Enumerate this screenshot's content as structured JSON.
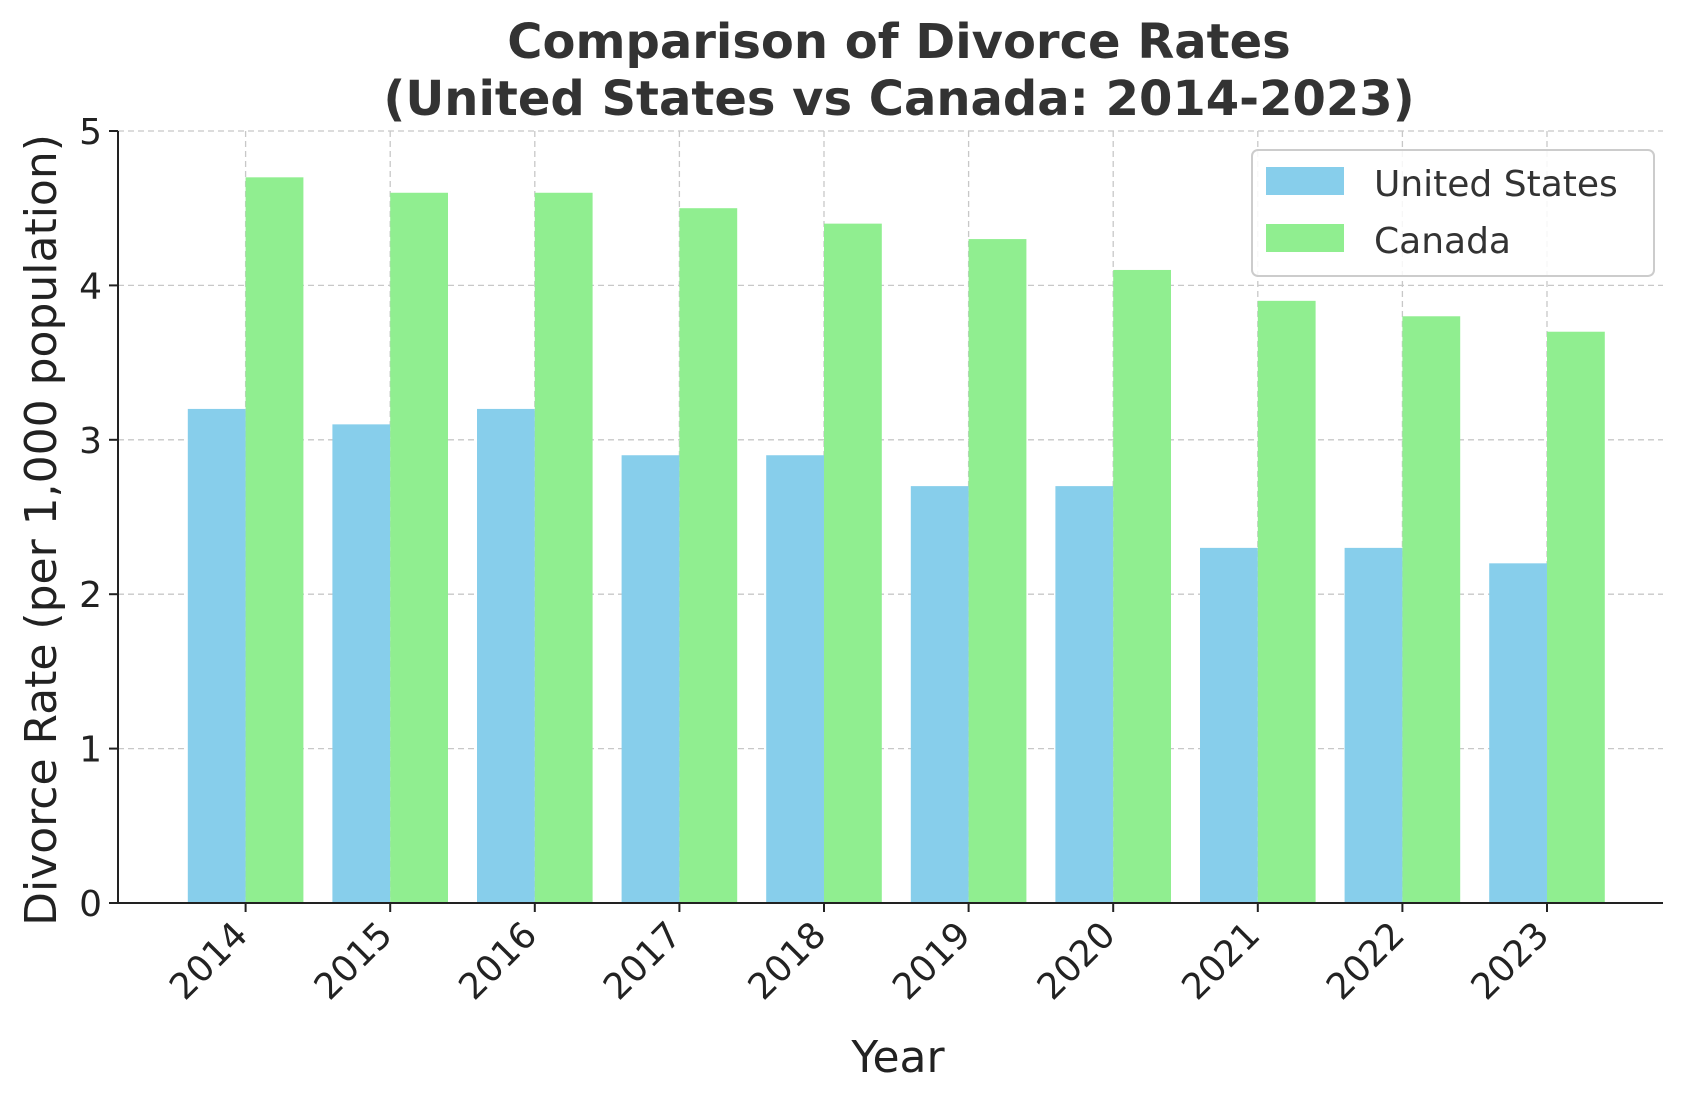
{
  "chart_data": {
    "type": "bar",
    "title_line1": "Comparison of Divorce Rates",
    "title_line2": "(United States vs Canada: 2014-2023)",
    "xlabel": "Year",
    "ylabel": "Divorce Rate (per 1,000 population)",
    "categories": [
      "2014",
      "2015",
      "2016",
      "2017",
      "2018",
      "2019",
      "2020",
      "2021",
      "2022",
      "2023"
    ],
    "series": [
      {
        "name": "United States",
        "color": "#87ceeb",
        "values": [
          3.2,
          3.1,
          3.2,
          2.9,
          2.9,
          2.7,
          2.7,
          2.3,
          2.3,
          2.2
        ]
      },
      {
        "name": "Canada",
        "color": "#90ee90",
        "values": [
          4.7,
          4.6,
          4.6,
          4.5,
          4.4,
          4.3,
          4.1,
          3.9,
          3.8,
          3.7
        ]
      }
    ],
    "ylim": [
      0,
      5
    ],
    "yticks": [
      0,
      1,
      2,
      3,
      4,
      5
    ],
    "grid": true,
    "legend_position": "top-right"
  }
}
